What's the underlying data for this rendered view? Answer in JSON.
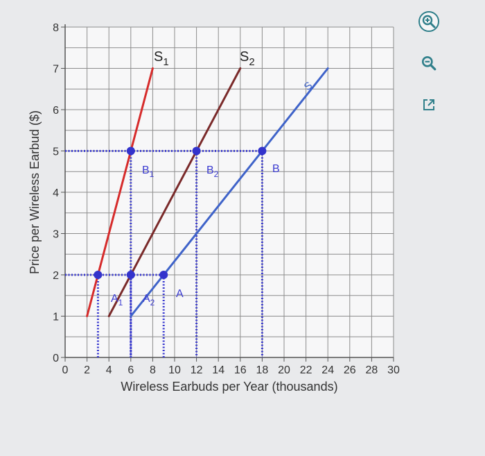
{
  "chart_data": {
    "type": "line",
    "xlabel": "Wireless Earbuds per Year (thousands)",
    "ylabel": "Price per Wireless Earbud ($)",
    "xlim": [
      0,
      30
    ],
    "ylim": [
      0,
      8
    ],
    "x_ticks": [
      "0",
      "2",
      "4",
      "6",
      "8",
      "10",
      "12",
      "14",
      "16",
      "18",
      "20",
      "22",
      "24",
      "26",
      "28",
      "30"
    ],
    "y_ticks": [
      "0",
      "1",
      "2",
      "3",
      "4",
      "5",
      "6",
      "7",
      "8"
    ],
    "grid": true,
    "series": [
      {
        "name": "S1",
        "color": "#d62b2b",
        "points": [
          [
            2,
            1
          ],
          [
            8,
            7
          ]
        ]
      },
      {
        "name": "S2",
        "color": "#7a2a2a",
        "points": [
          [
            4,
            1
          ],
          [
            16,
            7
          ]
        ]
      },
      {
        "name": "S",
        "color": "#3f63c9",
        "points": [
          [
            6,
            1
          ],
          [
            24,
            7
          ]
        ]
      }
    ],
    "labels": {
      "s1": {
        "base": "S",
        "sub": "1"
      },
      "s2": {
        "base": "S",
        "sub": "2"
      },
      "s": "S"
    },
    "points": [
      {
        "name": "A1",
        "base": "A",
        "sub": "1",
        "x": 3,
        "y": 2
      },
      {
        "name": "A2",
        "base": "A",
        "sub": "2",
        "x": 6,
        "y": 2
      },
      {
        "name": "A",
        "base": "A",
        "sub": "",
        "x": 9,
        "y": 2
      },
      {
        "name": "B1",
        "base": "B",
        "sub": "1",
        "x": 6,
        "y": 5
      },
      {
        "name": "B2",
        "base": "B",
        "sub": "2",
        "x": 12,
        "y": 5
      },
      {
        "name": "B",
        "base": "B",
        "sub": "",
        "x": 18,
        "y": 5
      }
    ],
    "point_color": "#3333cc"
  },
  "toolbar": {
    "zoom_in": "zoom-in-icon",
    "zoom_out": "zoom-out-icon",
    "expand": "external-link-icon"
  }
}
